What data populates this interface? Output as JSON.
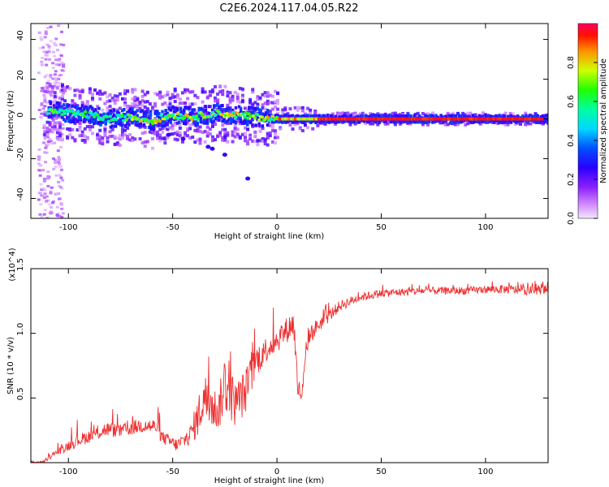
{
  "title": "C2E6.2024.117.04.05.R22",
  "chart_data": [
    {
      "type": "heatmap",
      "title": "C2E6.2024.117.04.05.R22",
      "xlabel": "Height of straight line (km)",
      "ylabel": "Frequency (Hz)",
      "xlim": [
        -118,
        130
      ],
      "ylim": [
        -50,
        48
      ],
      "xticks": [
        -100,
        -50,
        0,
        50,
        100
      ],
      "yticks": [
        -40,
        -20,
        0,
        20,
        40
      ],
      "colorbar": {
        "label": "Normalized spectral amplitude",
        "range": [
          0.0,
          1.0
        ],
        "ticks": [
          0.0,
          0.2,
          0.4,
          0.6,
          0.8
        ],
        "tick_labels": [
          "0.0",
          "0.2",
          "0.4",
          "0.6",
          "0.8"
        ],
        "colormap": "rainbow (white, purple, blue, cyan, green, yellow, red)"
      },
      "ridge": [
        {
          "x": -110,
          "y": 4
        },
        {
          "x": -100,
          "y": 3
        },
        {
          "x": -90,
          "y": 2
        },
        {
          "x": -80,
          "y": 0
        },
        {
          "x": -70,
          "y": 1
        },
        {
          "x": -60,
          "y": -1
        },
        {
          "x": -50,
          "y": 2
        },
        {
          "x": -40,
          "y": 1
        },
        {
          "x": -30,
          "y": 3
        },
        {
          "x": -20,
          "y": 2
        },
        {
          "x": -10,
          "y": 1
        },
        {
          "x": 0,
          "y": 0
        },
        {
          "x": 10,
          "y": 0
        },
        {
          "x": 20,
          "y": 0
        },
        {
          "x": 50,
          "y": 0
        },
        {
          "x": 100,
          "y": 0
        },
        {
          "x": 130,
          "y": 0
        }
      ]
    },
    {
      "type": "line",
      "xlabel": "Height of straight line (km)",
      "ylabel": "SNR (10 * v/v)",
      "y_scale_label": "(x10^4)",
      "xlim": [
        -118,
        130
      ],
      "ylim": [
        0.0,
        1.5
      ],
      "xticks": [
        -100,
        -50,
        0,
        50,
        100
      ],
      "yticks": [
        0.5,
        1.0,
        1.5
      ],
      "ytick_labels": [
        "0.5",
        "1.0",
        "1.5"
      ],
      "series": [
        {
          "name": "SNR",
          "color": "#ee3030",
          "x": [
            -118,
            -112,
            -108,
            -100,
            -95,
            -88,
            -82,
            -75,
            -65,
            -58,
            -55,
            -48,
            -42,
            -38,
            -35,
            -32,
            -28,
            -25,
            -20,
            -15,
            -10,
            -5,
            0,
            5,
            8,
            10,
            12,
            15,
            20,
            25,
            30,
            40,
            50,
            60,
            70,
            80,
            90,
            100,
            110,
            120,
            130
          ],
          "values": [
            0.0,
            0.0,
            0.05,
            0.12,
            0.16,
            0.2,
            0.24,
            0.23,
            0.27,
            0.26,
            0.18,
            0.12,
            0.18,
            0.3,
            0.45,
            0.4,
            0.35,
            0.55,
            0.4,
            0.5,
            0.75,
            0.85,
            0.92,
            1.0,
            1.05,
            0.55,
            0.5,
            0.95,
            1.05,
            1.12,
            1.2,
            1.27,
            1.3,
            1.31,
            1.32,
            1.32,
            1.32,
            1.33,
            1.33,
            1.32,
            1.33
          ],
          "band": [
            0.02,
            0.02,
            0.04,
            0.08,
            0.1,
            0.1,
            0.12,
            0.1,
            0.12,
            0.12,
            0.1,
            0.1,
            0.14,
            0.3,
            0.4,
            0.35,
            0.3,
            0.5,
            0.35,
            0.35,
            0.25,
            0.2,
            0.2,
            0.2,
            0.22,
            0.18,
            0.15,
            0.15,
            0.12,
            0.1,
            0.08,
            0.07,
            0.06,
            0.06,
            0.06,
            0.06,
            0.06,
            0.06,
            0.07,
            0.07,
            0.07
          ]
        }
      ]
    }
  ]
}
